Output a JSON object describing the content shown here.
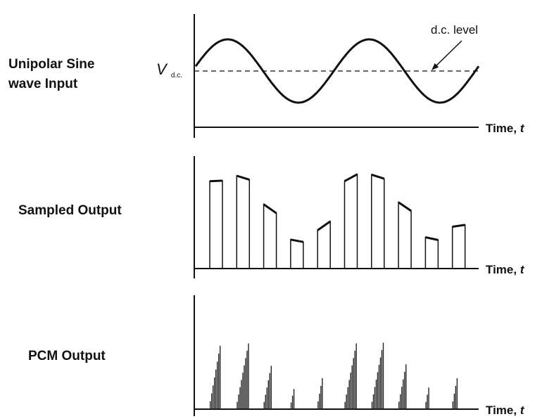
{
  "labels": {
    "row1_line1": "Unipolar Sine",
    "row1_line2": "wave Input",
    "row2": "Sampled Output",
    "row3": "PCM Output",
    "vdc_main": "V",
    "vdc_sub": "d.c.",
    "dc_level": "d.c. level",
    "time_prefix": "Time, ",
    "time_var": "t"
  },
  "sampled_heights": [
    0.82,
    0.85,
    0.56,
    0.26,
    0.4,
    0.85,
    0.86,
    0.58,
    0.28,
    0.4
  ]
}
